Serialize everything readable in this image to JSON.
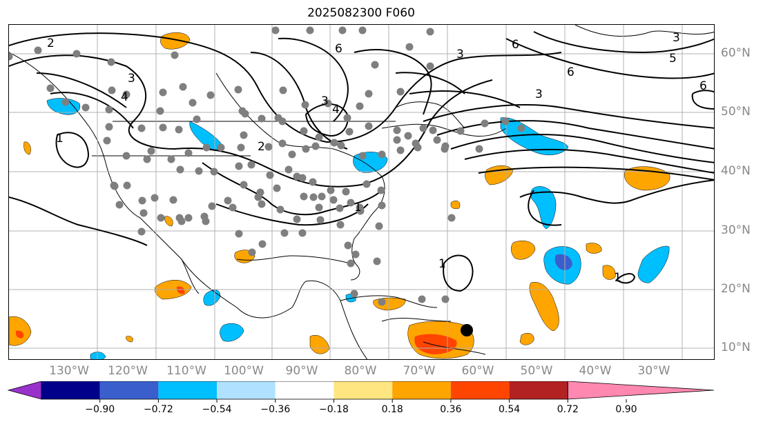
{
  "title": "2025082300 F060",
  "longitude_labels": [
    "130°W",
    "120°W",
    "110°W",
    "100°W",
    "90°W",
    "80°W",
    "70°W",
    "60°W",
    "50°W",
    "40°W",
    "30°W"
  ],
  "latitude_labels": [
    "60°N",
    "50°N",
    "40°N",
    "30°N",
    "20°N",
    "10°N"
  ],
  "colorbar": {
    "ticks": [
      "−0.90",
      "−0.72",
      "−0.54",
      "−0.36",
      "−0.18",
      "0.18",
      "0.36",
      "0.54",
      "0.72",
      "0.90"
    ],
    "colors": [
      "#9932cc",
      "#00008b",
      "#3a5fcd",
      "#00bfff",
      "#b0e2ff",
      "#ffffff",
      "#ffe680",
      "#ffa500",
      "#ff4500",
      "#b22222",
      "#ff88b0"
    ]
  },
  "contour_labels": [
    "2",
    "3",
    "4",
    "6",
    "3",
    "6",
    "6",
    "3",
    "6",
    "5",
    "3",
    "2",
    "1",
    "1",
    "1",
    "1",
    "3",
    "4"
  ],
  "colors": {
    "negative_fill": "#00bfff",
    "negative_core": "#3a5fcd",
    "positive_fill": "#ffa500",
    "positive_core": "#ff4500",
    "station": "#7f7f7f",
    "grid": "#b0b0b0"
  }
}
